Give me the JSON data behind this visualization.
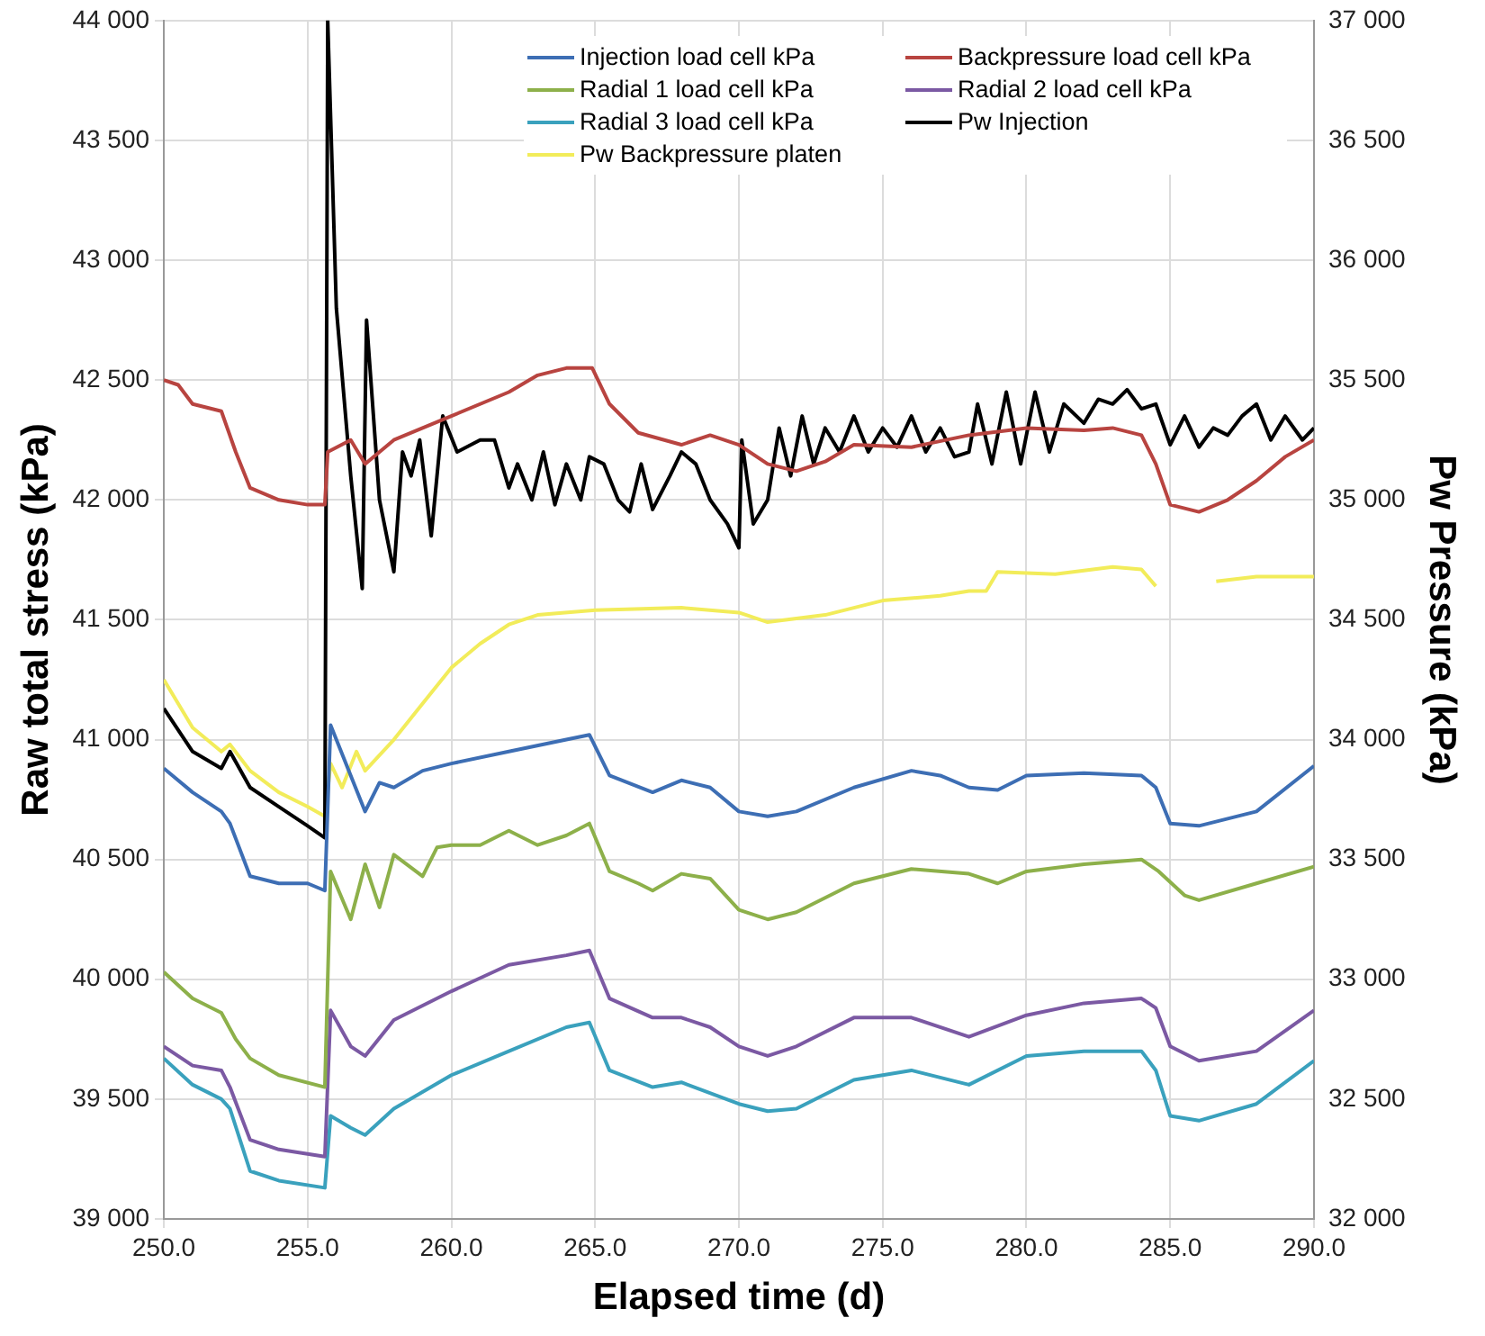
{
  "chart_data": {
    "type": "line",
    "xlabel": "Elapsed time (d)",
    "ylabel": "Raw total stress (kPa)",
    "y2label": "Pw Pressure (kPa)",
    "xlim": [
      250,
      290
    ],
    "xticks": [
      {
        "value": 250,
        "label": "250.0"
      },
      {
        "value": 255,
        "label": "255.0"
      },
      {
        "value": 260,
        "label": "260.0"
      },
      {
        "value": 265,
        "label": "265.0"
      },
      {
        "value": 270,
        "label": "270.0"
      },
      {
        "value": 275,
        "label": "275.0"
      },
      {
        "value": 280,
        "label": "280.0"
      },
      {
        "value": 285,
        "label": "285.0"
      },
      {
        "value": 290,
        "label": "290.0"
      }
    ],
    "ylim": [
      39000,
      44000
    ],
    "yticks": [
      {
        "value": 39000,
        "label": "39 000"
      },
      {
        "value": 39500,
        "label": "39 500"
      },
      {
        "value": 40000,
        "label": "40 000"
      },
      {
        "value": 40500,
        "label": "40 500"
      },
      {
        "value": 41000,
        "label": "41 000"
      },
      {
        "value": 41500,
        "label": "41 500"
      },
      {
        "value": 42000,
        "label": "42 000"
      },
      {
        "value": 42500,
        "label": "42 500"
      },
      {
        "value": 43000,
        "label": "43 000"
      },
      {
        "value": 43500,
        "label": "43 500"
      },
      {
        "value": 44000,
        "label": "44 000"
      }
    ],
    "y2lim": [
      32000,
      37000
    ],
    "y2ticks": [
      {
        "value": 32000,
        "label": "32 000"
      },
      {
        "value": 32500,
        "label": "32 500"
      },
      {
        "value": 33000,
        "label": "33 000"
      },
      {
        "value": 33500,
        "label": "33 500"
      },
      {
        "value": 34000,
        "label": "34 000"
      },
      {
        "value": 34500,
        "label": "34 500"
      },
      {
        "value": 35000,
        "label": "35 000"
      },
      {
        "value": 35500,
        "label": "35 500"
      },
      {
        "value": 36000,
        "label": "36 000"
      },
      {
        "value": 36500,
        "label": "36 500"
      },
      {
        "value": 37000,
        "label": "37 000"
      }
    ],
    "grid": true,
    "legend": "top right",
    "marker": "none",
    "line_style": "solid",
    "series": [
      {
        "name": "Injection load cell kPa",
        "color": "#3d6eb4",
        "x": [
          250,
          251,
          252,
          252.3,
          253,
          254,
          255,
          255.6,
          255.8,
          256.5,
          257,
          257.5,
          258,
          259,
          260,
          262,
          264,
          264.8,
          265.5,
          267,
          268,
          269,
          270,
          271,
          272,
          274,
          276,
          277,
          278,
          279,
          280,
          282,
          284,
          284.5,
          285,
          286,
          288,
          290
        ],
        "values": [
          40880,
          40780,
          40700,
          40650,
          40430,
          40400,
          40400,
          40370,
          41060,
          40850,
          40700,
          40820,
          40800,
          40870,
          40900,
          40950,
          41000,
          41020,
          40850,
          40780,
          40830,
          40800,
          40700,
          40680,
          40700,
          40800,
          40870,
          40850,
          40800,
          40790,
          40850,
          40860,
          40850,
          40800,
          40650,
          40640,
          40700,
          40890
        ]
      },
      {
        "name": "Backpressure load cell kPa",
        "color": "#b84440",
        "x": [
          250,
          250.5,
          251,
          252,
          252.5,
          253,
          254,
          255,
          255.6,
          255.7,
          256.5,
          257,
          258,
          260,
          262,
          263,
          264,
          264.9,
          265.5,
          266.5,
          268,
          269,
          270,
          271,
          272,
          273,
          274,
          276,
          278,
          280,
          282,
          283,
          284,
          284.5,
          285,
          286,
          287,
          288,
          289,
          290
        ],
        "values": [
          42500,
          42480,
          42400,
          42370,
          42200,
          42050,
          42000,
          41980,
          41980,
          42200,
          42250,
          42150,
          42250,
          42350,
          42450,
          42520,
          42550,
          42550,
          42400,
          42280,
          42230,
          42270,
          42230,
          42150,
          42120,
          42160,
          42230,
          42220,
          42270,
          42300,
          42290,
          42300,
          42270,
          42150,
          41980,
          41950,
          42000,
          42080,
          42180,
          42250
        ]
      },
      {
        "name": "Radial 1 load cell kPa",
        "color": "#8db04a",
        "x": [
          250,
          251,
          252,
          252.5,
          253,
          254,
          255.6,
          255.8,
          256.5,
          257,
          257.5,
          258,
          259,
          259.5,
          260,
          261,
          262,
          263,
          264,
          264.8,
          265.5,
          266.5,
          267,
          268,
          269,
          270,
          271,
          272,
          274,
          276,
          278,
          279,
          280,
          282,
          284,
          284.6,
          285.5,
          286,
          288,
          290
        ],
        "values": [
          40030,
          39920,
          39860,
          39750,
          39670,
          39600,
          39550,
          40450,
          40250,
          40480,
          40300,
          40520,
          40430,
          40550,
          40560,
          40560,
          40620,
          40560,
          40600,
          40650,
          40450,
          40400,
          40370,
          40440,
          40420,
          40290,
          40250,
          40280,
          40400,
          40460,
          40440,
          40400,
          40450,
          40480,
          40500,
          40450,
          40350,
          40330,
          40400,
          40470
        ]
      },
      {
        "name": "Radial 2 load cell kPa",
        "color": "#7b59a3",
        "x": [
          250,
          251,
          252,
          252.3,
          253,
          254,
          255.6,
          255.8,
          256.5,
          257,
          258,
          260,
          262,
          264,
          264.8,
          265.5,
          267,
          268,
          269,
          270,
          271,
          272,
          274,
          276,
          278,
          280,
          282,
          284,
          284.5,
          285,
          286,
          288,
          290
        ],
        "values": [
          39720,
          39640,
          39620,
          39550,
          39330,
          39290,
          39260,
          39870,
          39720,
          39680,
          39830,
          39950,
          40060,
          40100,
          40120,
          39920,
          39840,
          39840,
          39800,
          39720,
          39680,
          39720,
          39840,
          39840,
          39760,
          39850,
          39900,
          39920,
          39880,
          39720,
          39660,
          39700,
          39870
        ]
      },
      {
        "name": "Radial 3 load cell kPa",
        "color": "#3aa1bd",
        "x": [
          250,
          251,
          252,
          252.3,
          253,
          254,
          255.6,
          255.8,
          256.5,
          257,
          258,
          260,
          262,
          264,
          264.8,
          265.5,
          267,
          268,
          270,
          271,
          272,
          274,
          276,
          278,
          280,
          282,
          284,
          284.5,
          285,
          286,
          288,
          290
        ],
        "values": [
          39670,
          39560,
          39500,
          39460,
          39200,
          39160,
          39130,
          39430,
          39380,
          39350,
          39460,
          39600,
          39700,
          39800,
          39820,
          39620,
          39550,
          39570,
          39480,
          39450,
          39460,
          39580,
          39620,
          39560,
          39680,
          39700,
          39700,
          39620,
          39430,
          39410,
          39480,
          39660
        ]
      },
      {
        "name": "Pw Injection",
        "color": "#000000",
        "axis": "y2",
        "x": [
          250,
          251,
          252,
          252.3,
          253,
          254,
          255,
          255.6,
          255.7,
          256,
          256.5,
          256.9,
          257.05,
          257.5,
          258,
          258.3,
          258.6,
          258.9,
          259.3,
          259.7,
          260.2,
          261,
          261.5,
          262,
          262.3,
          262.8,
          263.2,
          263.6,
          264,
          264.5,
          264.8,
          265.3,
          265.8,
          266.2,
          266.6,
          267,
          267.6,
          268,
          268.5,
          269,
          269.6,
          270,
          270.1,
          270.5,
          271,
          271.4,
          271.8,
          272.2,
          272.6,
          273,
          273.5,
          274,
          274.5,
          275,
          275.5,
          276,
          276.5,
          277,
          277.5,
          278,
          278.3,
          278.8,
          279.3,
          279.8,
          280.3,
          280.8,
          281.3,
          282,
          282.5,
          283,
          283.5,
          284,
          284.5,
          285,
          285.5,
          286,
          286.5,
          287,
          287.5,
          288,
          288.5,
          289,
          289.6,
          290
        ],
        "values": [
          34130,
          33950,
          33880,
          33950,
          33800,
          33720,
          33640,
          33590,
          37000,
          35800,
          35100,
          34630,
          35750,
          35000,
          34700,
          35200,
          35100,
          35250,
          34850,
          35350,
          35200,
          35250,
          35250,
          35050,
          35150,
          35000,
          35200,
          34980,
          35150,
          35000,
          35180,
          35150,
          35000,
          34950,
          35150,
          34960,
          35100,
          35200,
          35150,
          35000,
          34900,
          34800,
          35250,
          34900,
          35000,
          35300,
          35100,
          35350,
          35150,
          35300,
          35200,
          35350,
          35200,
          35300,
          35220,
          35350,
          35200,
          35300,
          35180,
          35200,
          35400,
          35150,
          35450,
          35150,
          35450,
          35200,
          35400,
          35320,
          35420,
          35400,
          35460,
          35380,
          35400,
          35230,
          35350,
          35220,
          35300,
          35270,
          35350,
          35400,
          35250,
          35350,
          35250,
          35300
        ]
      },
      {
        "name": "Pw Backpressure platen",
        "color": "#f2ec5a",
        "axis": "y2",
        "x": [
          250,
          251,
          252,
          252.3,
          253,
          254,
          255,
          255.6,
          255.8,
          256.2,
          256.7,
          257,
          258,
          259,
          260,
          261,
          262,
          263,
          265,
          268,
          270,
          271,
          273,
          275,
          277,
          278,
          278.6,
          279,
          281,
          283,
          284,
          284.5,
          285.5,
          286.6,
          288,
          290
        ],
        "values": [
          34250,
          34050,
          33950,
          33980,
          33870,
          33780,
          33720,
          33680,
          33900,
          33800,
          33950,
          33870,
          34000,
          34150,
          34300,
          34400,
          34480,
          34520,
          34540,
          34550,
          34530,
          34490,
          34520,
          34580,
          34600,
          34620,
          34620,
          34700,
          34690,
          34720,
          34710,
          34640,
          null,
          34660,
          34680,
          34680
        ]
      }
    ]
  }
}
